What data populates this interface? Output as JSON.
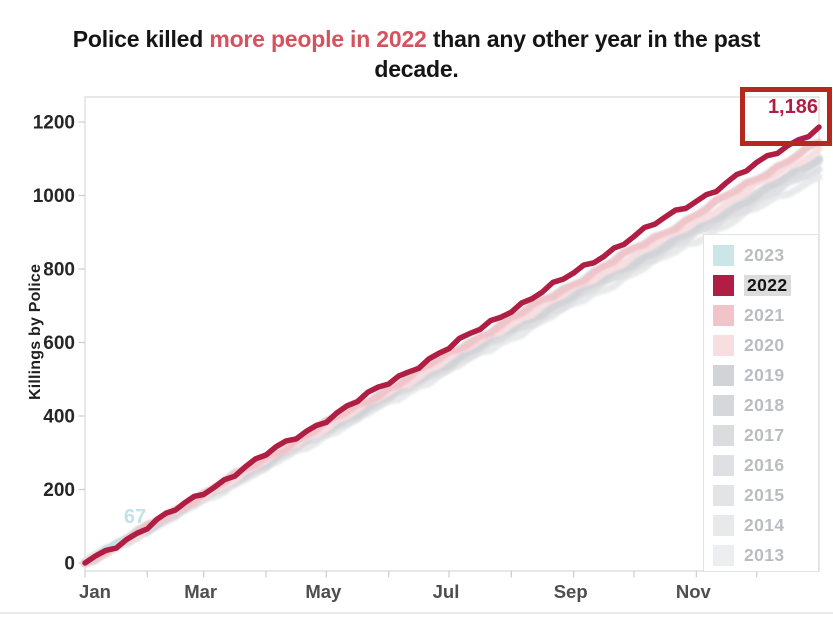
{
  "title": {
    "part1": "Police killed ",
    "highlight": "more people in 2022",
    "part2": " than any other year in the past",
    "line2": "decade.",
    "highlight_color": "#d5535e"
  },
  "annotations": {
    "max_label": "1,186",
    "max_value": 1186,
    "max_color": "#b01e43",
    "box_color": "#b5281e",
    "start_label": "67",
    "start_value": 67,
    "start_color": "#c2e2e6"
  },
  "legend": {
    "items": [
      {
        "label": "2023",
        "color": "#cbe6e8",
        "highlighted": false
      },
      {
        "label": "2022",
        "color": "#b01e43",
        "highlighted": true
      },
      {
        "label": "2021",
        "color": "#f0c4c9",
        "highlighted": false
      },
      {
        "label": "2020",
        "color": "#f8dee1",
        "highlighted": false
      },
      {
        "label": "2019",
        "color": "#d1d3d7",
        "highlighted": false
      },
      {
        "label": "2018",
        "color": "#d5d7da",
        "highlighted": false
      },
      {
        "label": "2017",
        "color": "#dadcdf",
        "highlighted": false
      },
      {
        "label": "2016",
        "color": "#dfe0e3",
        "highlighted": false
      },
      {
        "label": "2015",
        "color": "#e3e4e6",
        "highlighted": false
      },
      {
        "label": "2014",
        "color": "#e8e9ea",
        "highlighted": false
      },
      {
        "label": "2013",
        "color": "#edeeef",
        "highlighted": false
      }
    ]
  },
  "chart_data": {
    "type": "line",
    "title": "Police killed more people in 2022 than any other year in the past decade.",
    "xlabel": "",
    "ylabel": "Killings by Police",
    "x_unit": "day of year (cumulative killings)",
    "xlim": [
      0,
      365
    ],
    "ylim": [
      0,
      1200
    ],
    "grid": false,
    "legend_position": "right-overlay",
    "y_ticks": [
      0,
      200,
      400,
      600,
      800,
      1000,
      1200
    ],
    "month_start_days": [
      0,
      31,
      59,
      90,
      120,
      151,
      181,
      212,
      243,
      273,
      304,
      334
    ],
    "x_tick_labels": [
      "Jan",
      "Mar",
      "May",
      "Jul",
      "Sep",
      "Nov"
    ],
    "series": [
      {
        "name": "2013",
        "color": "#edeeef",
        "width": 7,
        "days": [
          0,
          31,
          59,
          90,
          120,
          151,
          181,
          212,
          243,
          273,
          304,
          334,
          365
        ],
        "values": [
          0,
          93,
          178,
          271,
          362,
          452,
          543,
          634,
          727,
          816,
          906,
          999,
          1088
        ]
      },
      {
        "name": "2014",
        "color": "#e8e9ea",
        "width": 7,
        "days": [
          0,
          31,
          59,
          90,
          120,
          151,
          181,
          212,
          243,
          273,
          304,
          334,
          365
        ],
        "values": [
          0,
          88,
          170,
          259,
          347,
          437,
          524,
          613,
          703,
          789,
          877,
          965,
          1051
        ]
      },
      {
        "name": "2015",
        "color": "#e3e4e6",
        "width": 7,
        "days": [
          0,
          31,
          59,
          90,
          120,
          151,
          181,
          212,
          243,
          273,
          304,
          334,
          365
        ],
        "values": [
          0,
          96,
          183,
          277,
          368,
          459,
          551,
          645,
          738,
          827,
          919,
          1012,
          1103
        ]
      },
      {
        "name": "2016",
        "color": "#dfe0e3",
        "width": 7,
        "days": [
          0,
          31,
          59,
          90,
          120,
          151,
          181,
          212,
          243,
          273,
          304,
          334,
          365
        ],
        "values": [
          0,
          90,
          174,
          265,
          353,
          444,
          533,
          623,
          714,
          803,
          893,
          983,
          1071
        ]
      },
      {
        "name": "2017",
        "color": "#dadcdf",
        "width": 7,
        "days": [
          0,
          31,
          59,
          90,
          120,
          151,
          181,
          212,
          243,
          273,
          304,
          334,
          365
        ],
        "values": [
          0,
          92,
          178,
          271,
          361,
          452,
          543,
          634,
          726,
          815,
          906,
          1000,
          1095
        ]
      },
      {
        "name": "2018",
        "color": "#d5d7da",
        "width": 7,
        "days": [
          0,
          31,
          59,
          90,
          120,
          151,
          181,
          212,
          243,
          273,
          304,
          334,
          365
        ],
        "values": [
          0,
          98,
          189,
          287,
          381,
          476,
          570,
          665,
          761,
          853,
          947,
          1046,
          1143
        ]
      },
      {
        "name": "2019",
        "color": "#d1d3d7",
        "width": 7,
        "days": [
          0,
          31,
          59,
          90,
          120,
          151,
          181,
          212,
          243,
          273,
          304,
          334,
          365
        ],
        "values": [
          0,
          93,
          179,
          272,
          362,
          453,
          544,
          636,
          728,
          817,
          908,
          1002,
          1098
        ]
      },
      {
        "name": "2020",
        "color": "#f8dee1",
        "width": 6.5,
        "days": [
          0,
          31,
          59,
          90,
          120,
          151,
          181,
          212,
          243,
          273,
          304,
          334,
          365
        ],
        "values": [
          0,
          95,
          183,
          278,
          370,
          463,
          556,
          650,
          744,
          835,
          929,
          1026,
          1126
        ]
      },
      {
        "name": "2021",
        "color": "#f0c4c9",
        "width": 6.5,
        "days": [
          0,
          31,
          59,
          90,
          120,
          151,
          181,
          212,
          243,
          273,
          304,
          334,
          365
        ],
        "values": [
          0,
          97,
          187,
          284,
          378,
          473,
          568,
          663,
          759,
          852,
          948,
          1046,
          1145
        ]
      },
      {
        "name": "2023",
        "color": "#c2e1e5",
        "width": 4,
        "days": [
          0,
          20
        ],
        "values": [
          0,
          67
        ]
      },
      {
        "name": "2022",
        "color": "#b01e43",
        "width": 5.5,
        "days": [
          0,
          31,
          59,
          90,
          120,
          151,
          181,
          212,
          243,
          273,
          304,
          334,
          365
        ],
        "values": [
          0,
          98,
          192,
          295,
          391,
          491,
          586,
          690,
          788,
          890,
          986,
          1085,
          1186
        ]
      }
    ]
  }
}
